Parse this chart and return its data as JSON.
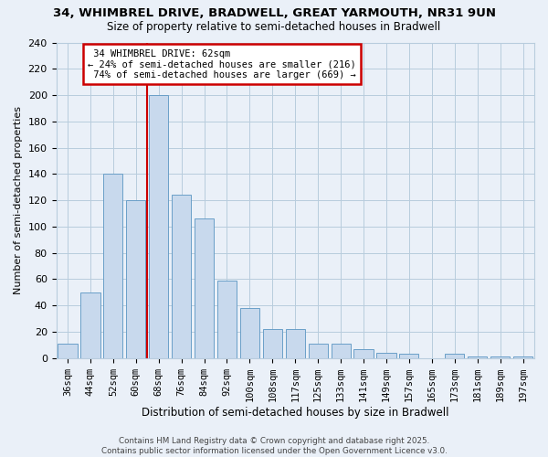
{
  "title": "34, WHIMBREL DRIVE, BRADWELL, GREAT YARMOUTH, NR31 9UN",
  "subtitle": "Size of property relative to semi-detached houses in Bradwell",
  "xlabel": "Distribution of semi-detached houses by size in Bradwell",
  "ylabel": "Number of semi-detached properties",
  "bar_color": "#c8d9ed",
  "bar_edge_color": "#6a9fc8",
  "grid_color": "#b8ccdd",
  "background_color": "#eaf0f8",
  "bins": [
    "36sqm",
    "44sqm",
    "52sqm",
    "60sqm",
    "68sqm",
    "76sqm",
    "84sqm",
    "92sqm",
    "100sqm",
    "108sqm",
    "117sqm",
    "125sqm",
    "133sqm",
    "141sqm",
    "149sqm",
    "157sqm",
    "165sqm",
    "173sqm",
    "181sqm",
    "189sqm",
    "197sqm"
  ],
  "values": [
    11,
    50,
    140,
    120,
    200,
    124,
    106,
    59,
    38,
    22,
    22,
    11,
    11,
    7,
    4,
    3,
    0,
    3,
    1,
    1,
    1
  ],
  "property_label": "34 WHIMBREL DRIVE: 62sqm",
  "smaller_pct": 24,
  "smaller_count": 216,
  "larger_pct": 74,
  "larger_count": 669,
  "vline_bin_index": 3,
  "annotation_box_color": "#ffffff",
  "annotation_box_edge": "#cc0000",
  "vline_color": "#cc0000",
  "ylim": [
    0,
    240
  ],
  "yticks": [
    0,
    20,
    40,
    60,
    80,
    100,
    120,
    140,
    160,
    180,
    200,
    220,
    240
  ],
  "footer_line1": "Contains HM Land Registry data © Crown copyright and database right 2025.",
  "footer_line2": "Contains public sector information licensed under the Open Government Licence v3.0."
}
